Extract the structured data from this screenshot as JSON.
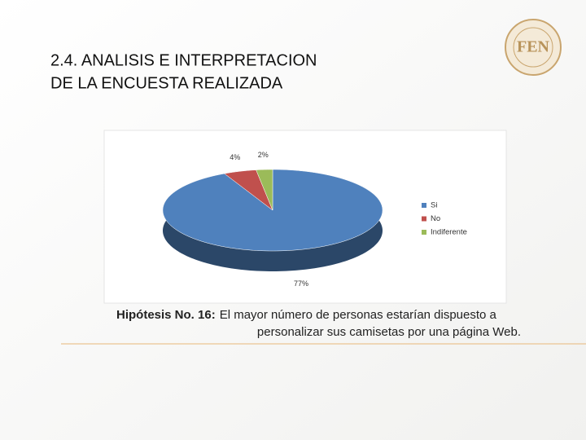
{
  "slide": {
    "title_line1": "2.4. ANALISIS E INTERPRETACION",
    "title_line2": "DE LA ENCUESTA REALIZADA",
    "caption_bold": "Hipótesis No. 16:",
    "caption_line1": "El mayor número de personas estarían dispuesto a",
    "caption_line2": "personalizar sus camisetas por una página Web.",
    "logo_text": "FEN"
  },
  "chart_data": {
    "type": "pie",
    "categories": [
      "Si",
      "No",
      "Indiferente"
    ],
    "values": [
      77,
      4,
      2
    ],
    "value_labels": [
      "77%",
      "4%",
      "2%"
    ],
    "colors": [
      "#4f81bd",
      "#c0504d",
      "#9bbb59"
    ],
    "legend": "right"
  }
}
